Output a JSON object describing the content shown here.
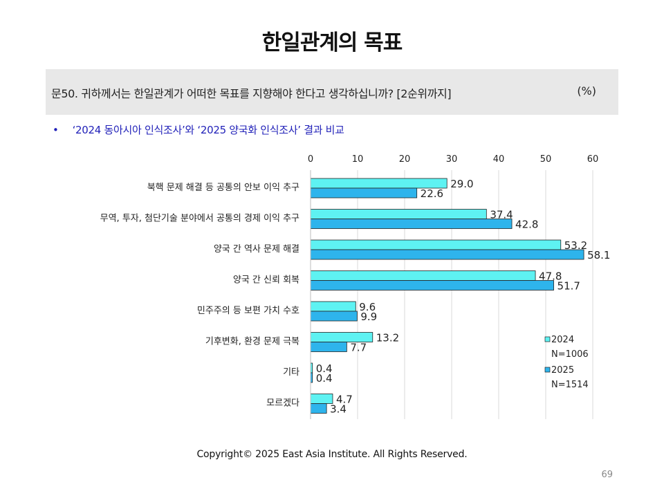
{
  "slide": {
    "title": "한일관계의 목표",
    "question": "문50. 귀하께서는 한일관계가 어떠한 목표를 지향해야 한다고 생각하십니까? [2순위까지]",
    "unit": "(%)",
    "bullet_marker": "•",
    "bullet": "‘2024 동아시아 인식조사’와 ‘2025 양국화 인식조사’ 결과 비교",
    "copyright": "Copyright© 2025 East Asia Institute. All Rights Reserved.",
    "page_number": "69"
  },
  "chart_data": {
    "type": "bar",
    "orientation": "horizontal",
    "categories": [
      "북핵 문제 해결 등 공통의 안보 이익 추구",
      "무역, 투자, 첨단기술 분야에서 공통의 경제 이익 추구",
      "양국 간 역사 문제 해결",
      "양국 간 신뢰 회복",
      "민주주의 등 보편 가치 수호",
      "기후변화, 환경 문제 극복",
      "기타",
      "모르겠다"
    ],
    "series": [
      {
        "name": "2024",
        "note": "N=1006",
        "color": "#5ef2f2",
        "values": [
          29.0,
          37.4,
          53.2,
          47.8,
          9.6,
          13.2,
          0.4,
          4.7
        ],
        "labels": [
          "29.0",
          "37.4",
          "53.2",
          "47.8",
          "9.6",
          "13.2",
          "0.4",
          "4.7"
        ]
      },
      {
        "name": "2025",
        "note": "N=1514",
        "color": "#2eb4ec",
        "values": [
          22.6,
          42.8,
          58.1,
          51.7,
          9.9,
          7.7,
          0.4,
          3.4
        ],
        "labels": [
          "22.6",
          "42.8",
          "58.1",
          "51.7",
          "9.9",
          "7.7",
          "0.4",
          "3.4"
        ]
      }
    ],
    "xlim": [
      0,
      60
    ],
    "ticks": [
      0,
      10,
      20,
      30,
      40,
      50,
      60
    ],
    "tick_labels": [
      "0",
      "10",
      "20",
      "30",
      "40",
      "50",
      "60"
    ],
    "axis_position": "top",
    "grid": true,
    "legend_position": "right"
  }
}
